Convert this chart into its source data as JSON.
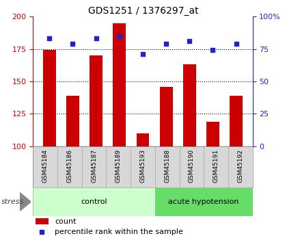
{
  "title": "GDS1251 / 1376297_at",
  "samples": [
    "GSM45184",
    "GSM45186",
    "GSM45187",
    "GSM45189",
    "GSM45193",
    "GSM45188",
    "GSM45190",
    "GSM45191",
    "GSM45192"
  ],
  "counts": [
    174,
    139,
    170,
    195,
    110,
    146,
    163,
    119,
    139
  ],
  "percentiles": [
    83,
    79,
    83,
    85,
    71,
    79,
    81,
    74,
    79
  ],
  "group_colors": {
    "control": "#ccffcc",
    "acute hypotension": "#66dd66"
  },
  "bar_color": "#cc0000",
  "dot_color": "#2222cc",
  "ylim_left": [
    100,
    200
  ],
  "ylim_right": [
    0,
    100
  ],
  "yticks_left": [
    100,
    125,
    150,
    175,
    200
  ],
  "yticks_right": [
    0,
    25,
    50,
    75,
    100
  ],
  "grid_values": [
    125,
    150,
    175
  ],
  "stress_label": "stress",
  "legend_count": "count",
  "legend_pct": "percentile rank within the sample",
  "background_color": "#ffffff",
  "bar_width": 0.55,
  "n_control": 5,
  "n_total": 9
}
